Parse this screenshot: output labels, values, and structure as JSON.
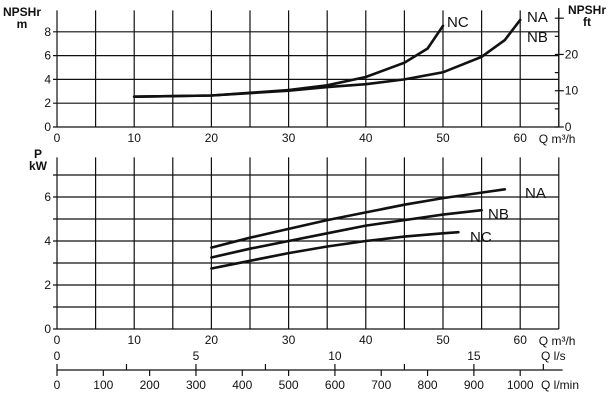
{
  "chart_data": [
    {
      "type": "line",
      "ylabel": [
        "NPSHr",
        "m"
      ],
      "ylabel_right": [
        "NPSHr",
        "ft"
      ],
      "xlabel": "Q m³/h",
      "xlim": [
        0,
        65
      ],
      "ylim": [
        0,
        9.8
      ],
      "x_ticks": [
        0,
        10,
        20,
        30,
        40,
        50,
        60
      ],
      "y_ticks": [
        0,
        2,
        4,
        6,
        8
      ],
      "y_right_ticks": [
        0,
        10,
        20
      ],
      "grid": true,
      "series": [
        {
          "name": "NA NB",
          "label": [
            "NA",
            "NB"
          ],
          "x": [
            10,
            20,
            30,
            35,
            40,
            45,
            50,
            55,
            58,
            60
          ],
          "y": [
            2.55,
            2.65,
            3.05,
            3.35,
            3.6,
            4.0,
            4.6,
            5.9,
            7.3,
            9.0
          ]
        },
        {
          "name": "NC",
          "label": [
            "NC"
          ],
          "x": [
            10,
            20,
            30,
            35,
            40,
            45,
            48,
            50
          ],
          "y": [
            2.55,
            2.65,
            3.1,
            3.5,
            4.2,
            5.4,
            6.6,
            8.5
          ]
        }
      ]
    },
    {
      "type": "line",
      "ylabel": [
        "P",
        "kW"
      ],
      "xlabel": "Q m³/h",
      "xlim": [
        0,
        65
      ],
      "ylim": [
        0,
        7.8
      ],
      "x_ticks": [
        0,
        10,
        20,
        30,
        40,
        50,
        60
      ],
      "y_ticks": [
        0,
        2,
        4,
        6
      ],
      "grid": true,
      "series": [
        {
          "name": "NA",
          "x": [
            20,
            25,
            30,
            35,
            40,
            45,
            50,
            55,
            58
          ],
          "y": [
            3.7,
            4.15,
            4.55,
            4.95,
            5.3,
            5.65,
            5.95,
            6.2,
            6.35
          ]
        },
        {
          "name": "NB",
          "x": [
            20,
            25,
            30,
            35,
            40,
            45,
            50,
            55
          ],
          "y": [
            3.25,
            3.65,
            4.0,
            4.35,
            4.7,
            4.95,
            5.2,
            5.4
          ]
        },
        {
          "name": "NC",
          "x": [
            20,
            25,
            30,
            35,
            40,
            45,
            50,
            52
          ],
          "y": [
            2.75,
            3.1,
            3.45,
            3.75,
            4.0,
            4.2,
            4.35,
            4.4
          ]
        }
      ]
    }
  ],
  "secondary_axes": {
    "ls": {
      "label": "Q l/s",
      "ticks": [
        0,
        5,
        10,
        15
      ]
    },
    "lmin": {
      "label": "Q l/min",
      "ticks": [
        0,
        100,
        200,
        300,
        400,
        500,
        600,
        700,
        800,
        900,
        1000
      ]
    }
  }
}
